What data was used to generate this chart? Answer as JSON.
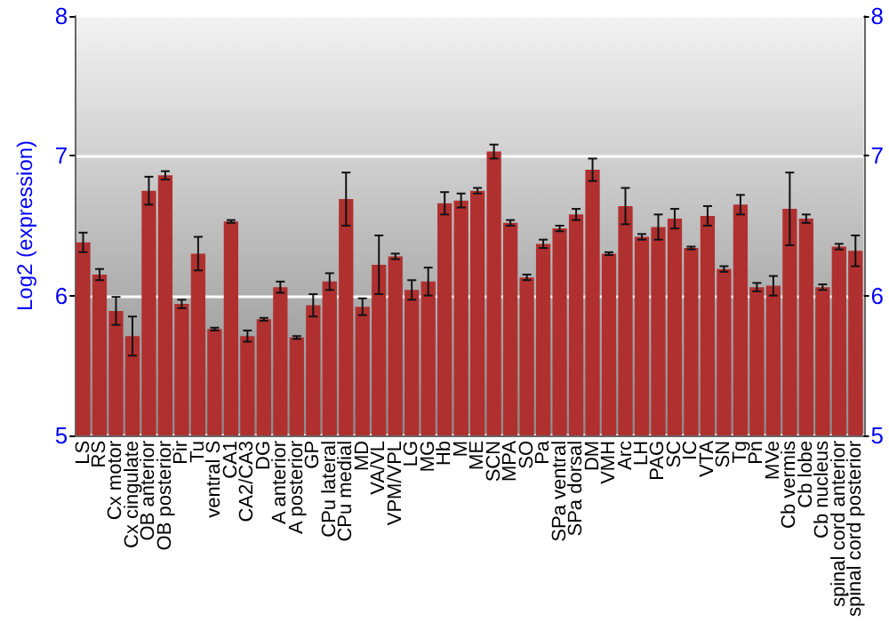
{
  "chart_data": {
    "type": "bar",
    "ylabel": "Log2 (expression)",
    "categories": [
      "LS",
      "RS",
      "Cx motor",
      "Cx cingulate",
      "OB anterior",
      "OB posterior",
      "Pir",
      "Tu",
      "ventral S",
      "CA1",
      "CA2/CA3",
      "DG",
      "A anterior",
      "A posterior",
      "GP",
      "CPu lateral",
      "CPu medial",
      "MD",
      "VA/VL",
      "VPM/VPL",
      "LG",
      "MG",
      "Hb",
      "M",
      "ME",
      "SCN",
      "MPA",
      "SO",
      "Pa",
      "SPa ventral",
      "SPa dorsal",
      "DM",
      "VMH",
      "Arc",
      "LH",
      "PAG",
      "SC",
      "IC",
      "VTA",
      "SN",
      "Tg",
      "Pn",
      "MVe",
      "Cb vermis",
      "Cb lobe",
      "Cb nucleus",
      "spinal cord anterior",
      "spinal cord posterior"
    ],
    "series": [
      {
        "color": "#b03030",
        "values": [
          6.38,
          6.15,
          5.89,
          5.71,
          6.75,
          6.86,
          5.94,
          6.3,
          5.76,
          6.53,
          5.71,
          5.83,
          6.06,
          5.7,
          5.93,
          6.1,
          6.69,
          5.92,
          6.22,
          6.28,
          6.04,
          6.1,
          6.66,
          6.68,
          6.75,
          7.03,
          6.52,
          6.13,
          6.37,
          6.48,
          6.58,
          6.9,
          6.3,
          6.64,
          6.42,
          6.49,
          6.55,
          6.34,
          6.57,
          6.19,
          6.65,
          6.06,
          6.07,
          6.62,
          6.55,
          6.06,
          6.35,
          6.32
        ],
        "errors": [
          0.07,
          0.04,
          0.1,
          0.14,
          0.1,
          0.03,
          0.03,
          0.12,
          0.01,
          0.01,
          0.04,
          0.01,
          0.04,
          0.01,
          0.08,
          0.06,
          0.19,
          0.06,
          0.21,
          0.02,
          0.07,
          0.1,
          0.08,
          0.05,
          0.02,
          0.05,
          0.02,
          0.02,
          0.03,
          0.02,
          0.04,
          0.08,
          0.01,
          0.13,
          0.02,
          0.09,
          0.07,
          0.01,
          0.07,
          0.02,
          0.07,
          0.03,
          0.07,
          0.26,
          0.03,
          0.02,
          0.02,
          0.11
        ]
      }
    ],
    "ylim": [
      5,
      8
    ],
    "yticks": [
      5,
      6,
      7,
      8
    ],
    "y2lim": [
      5,
      8
    ],
    "y2ticks": [
      5,
      6,
      7,
      8
    ],
    "grid": "y"
  }
}
